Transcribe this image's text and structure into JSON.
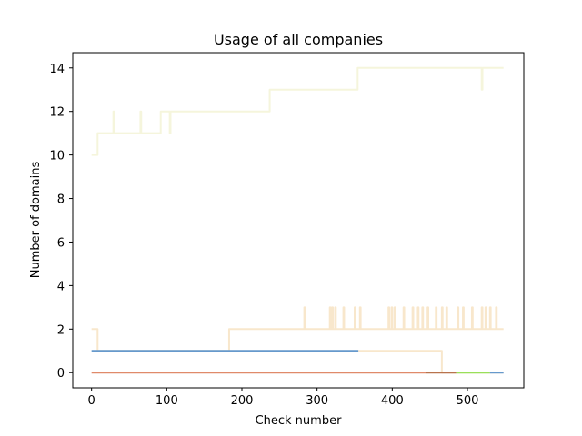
{
  "chart_data": {
    "type": "line",
    "title": "Usage of all companies",
    "xlabel": "Check number",
    "ylabel": "Number of domains",
    "xlim": [
      -25,
      575
    ],
    "ylim": [
      -0.7,
      14.7
    ],
    "xticks": [
      0,
      100,
      200,
      300,
      400,
      500
    ],
    "yticks": [
      0,
      2,
      4,
      6,
      8,
      10,
      12,
      14
    ],
    "grid": false,
    "legend": "none",
    "series": [
      {
        "color": "#f5f5dc",
        "steps": [
          [
            0,
            10
          ],
          [
            8,
            10
          ],
          [
            8,
            11
          ],
          [
            29,
            11
          ],
          [
            29,
            12
          ],
          [
            30,
            12
          ],
          [
            30,
            11
          ],
          [
            65,
            11
          ],
          [
            65,
            12
          ],
          [
            66,
            12
          ],
          [
            66,
            11
          ],
          [
            92,
            11
          ],
          [
            92,
            12
          ],
          [
            104,
            12
          ],
          [
            104,
            11
          ],
          [
            105,
            11
          ],
          [
            105,
            12
          ],
          [
            237,
            12
          ],
          [
            237,
            13
          ],
          [
            354,
            13
          ],
          [
            354,
            14
          ],
          [
            519,
            14
          ],
          [
            519,
            13
          ],
          [
            520,
            13
          ],
          [
            520,
            14
          ],
          [
            548,
            14
          ]
        ]
      },
      {
        "color": "#f8e7cc",
        "steps": [
          [
            0,
            2
          ],
          [
            8,
            2
          ],
          [
            8,
            1
          ],
          [
            183,
            1
          ],
          [
            183,
            2
          ],
          [
            283,
            2
          ],
          [
            283,
            3
          ],
          [
            284,
            3
          ],
          [
            284,
            2
          ],
          [
            317,
            2
          ],
          [
            317,
            3
          ],
          [
            318,
            3
          ],
          [
            318,
            2
          ],
          [
            320,
            2
          ],
          [
            320,
            3
          ],
          [
            321,
            3
          ],
          [
            321,
            2
          ],
          [
            324,
            2
          ],
          [
            324,
            3
          ],
          [
            325,
            3
          ],
          [
            325,
            2
          ],
          [
            335,
            2
          ],
          [
            335,
            3
          ],
          [
            336,
            3
          ],
          [
            336,
            2
          ],
          [
            350,
            2
          ],
          [
            350,
            3
          ],
          [
            351,
            3
          ],
          [
            351,
            2
          ],
          [
            357,
            2
          ],
          [
            357,
            3
          ],
          [
            358,
            3
          ],
          [
            358,
            2
          ],
          [
            395,
            2
          ],
          [
            395,
            3
          ],
          [
            396,
            3
          ],
          [
            396,
            2
          ],
          [
            399,
            2
          ],
          [
            399,
            3
          ],
          [
            400,
            3
          ],
          [
            400,
            2
          ],
          [
            403,
            2
          ],
          [
            403,
            3
          ],
          [
            404,
            3
          ],
          [
            404,
            2
          ],
          [
            415,
            2
          ],
          [
            415,
            3
          ],
          [
            416,
            3
          ],
          [
            416,
            2
          ],
          [
            427,
            2
          ],
          [
            427,
            3
          ],
          [
            428,
            3
          ],
          [
            428,
            2
          ],
          [
            434,
            2
          ],
          [
            434,
            3
          ],
          [
            435,
            3
          ],
          [
            435,
            2
          ],
          [
            440,
            2
          ],
          [
            440,
            3
          ],
          [
            441,
            3
          ],
          [
            441,
            2
          ],
          [
            447,
            2
          ],
          [
            447,
            3
          ],
          [
            448,
            3
          ],
          [
            448,
            2
          ],
          [
            458,
            2
          ],
          [
            458,
            3
          ],
          [
            459,
            3
          ],
          [
            459,
            2
          ],
          [
            466,
            2
          ],
          [
            466,
            3
          ],
          [
            467,
            3
          ],
          [
            467,
            2
          ],
          [
            472,
            2
          ],
          [
            472,
            3
          ],
          [
            473,
            3
          ],
          [
            473,
            2
          ],
          [
            487,
            2
          ],
          [
            487,
            3
          ],
          [
            488,
            3
          ],
          [
            488,
            2
          ],
          [
            494,
            2
          ],
          [
            494,
            3
          ],
          [
            495,
            3
          ],
          [
            495,
            2
          ],
          [
            506,
            2
          ],
          [
            506,
            3
          ],
          [
            507,
            3
          ],
          [
            507,
            2
          ],
          [
            519,
            2
          ],
          [
            519,
            3
          ],
          [
            520,
            3
          ],
          [
            520,
            2
          ],
          [
            524,
            2
          ],
          [
            524,
            3
          ],
          [
            525,
            3
          ],
          [
            525,
            2
          ],
          [
            530,
            2
          ],
          [
            530,
            3
          ],
          [
            531,
            3
          ],
          [
            531,
            2
          ],
          [
            538,
            2
          ],
          [
            538,
            3
          ],
          [
            539,
            3
          ],
          [
            539,
            2
          ],
          [
            548,
            2
          ]
        ]
      },
      {
        "color": "#f8e7cc",
        "steps": [
          [
            355,
            1
          ],
          [
            466,
            1
          ],
          [
            466,
            0
          ],
          [
            548,
            0
          ]
        ]
      },
      {
        "color": "#6699cc",
        "steps": [
          [
            0,
            1
          ],
          [
            355,
            1
          ]
        ]
      },
      {
        "color": "#e08a6a",
        "steps": [
          [
            0,
            0
          ],
          [
            445,
            0
          ]
        ]
      },
      {
        "color": "#b8734d",
        "steps": [
          [
            445,
            0
          ],
          [
            485,
            0
          ]
        ]
      },
      {
        "color": "#99e05a",
        "steps": [
          [
            485,
            0
          ],
          [
            530,
            0
          ]
        ]
      },
      {
        "color": "#6699cc",
        "steps": [
          [
            530,
            0
          ],
          [
            548,
            0
          ]
        ]
      }
    ]
  }
}
